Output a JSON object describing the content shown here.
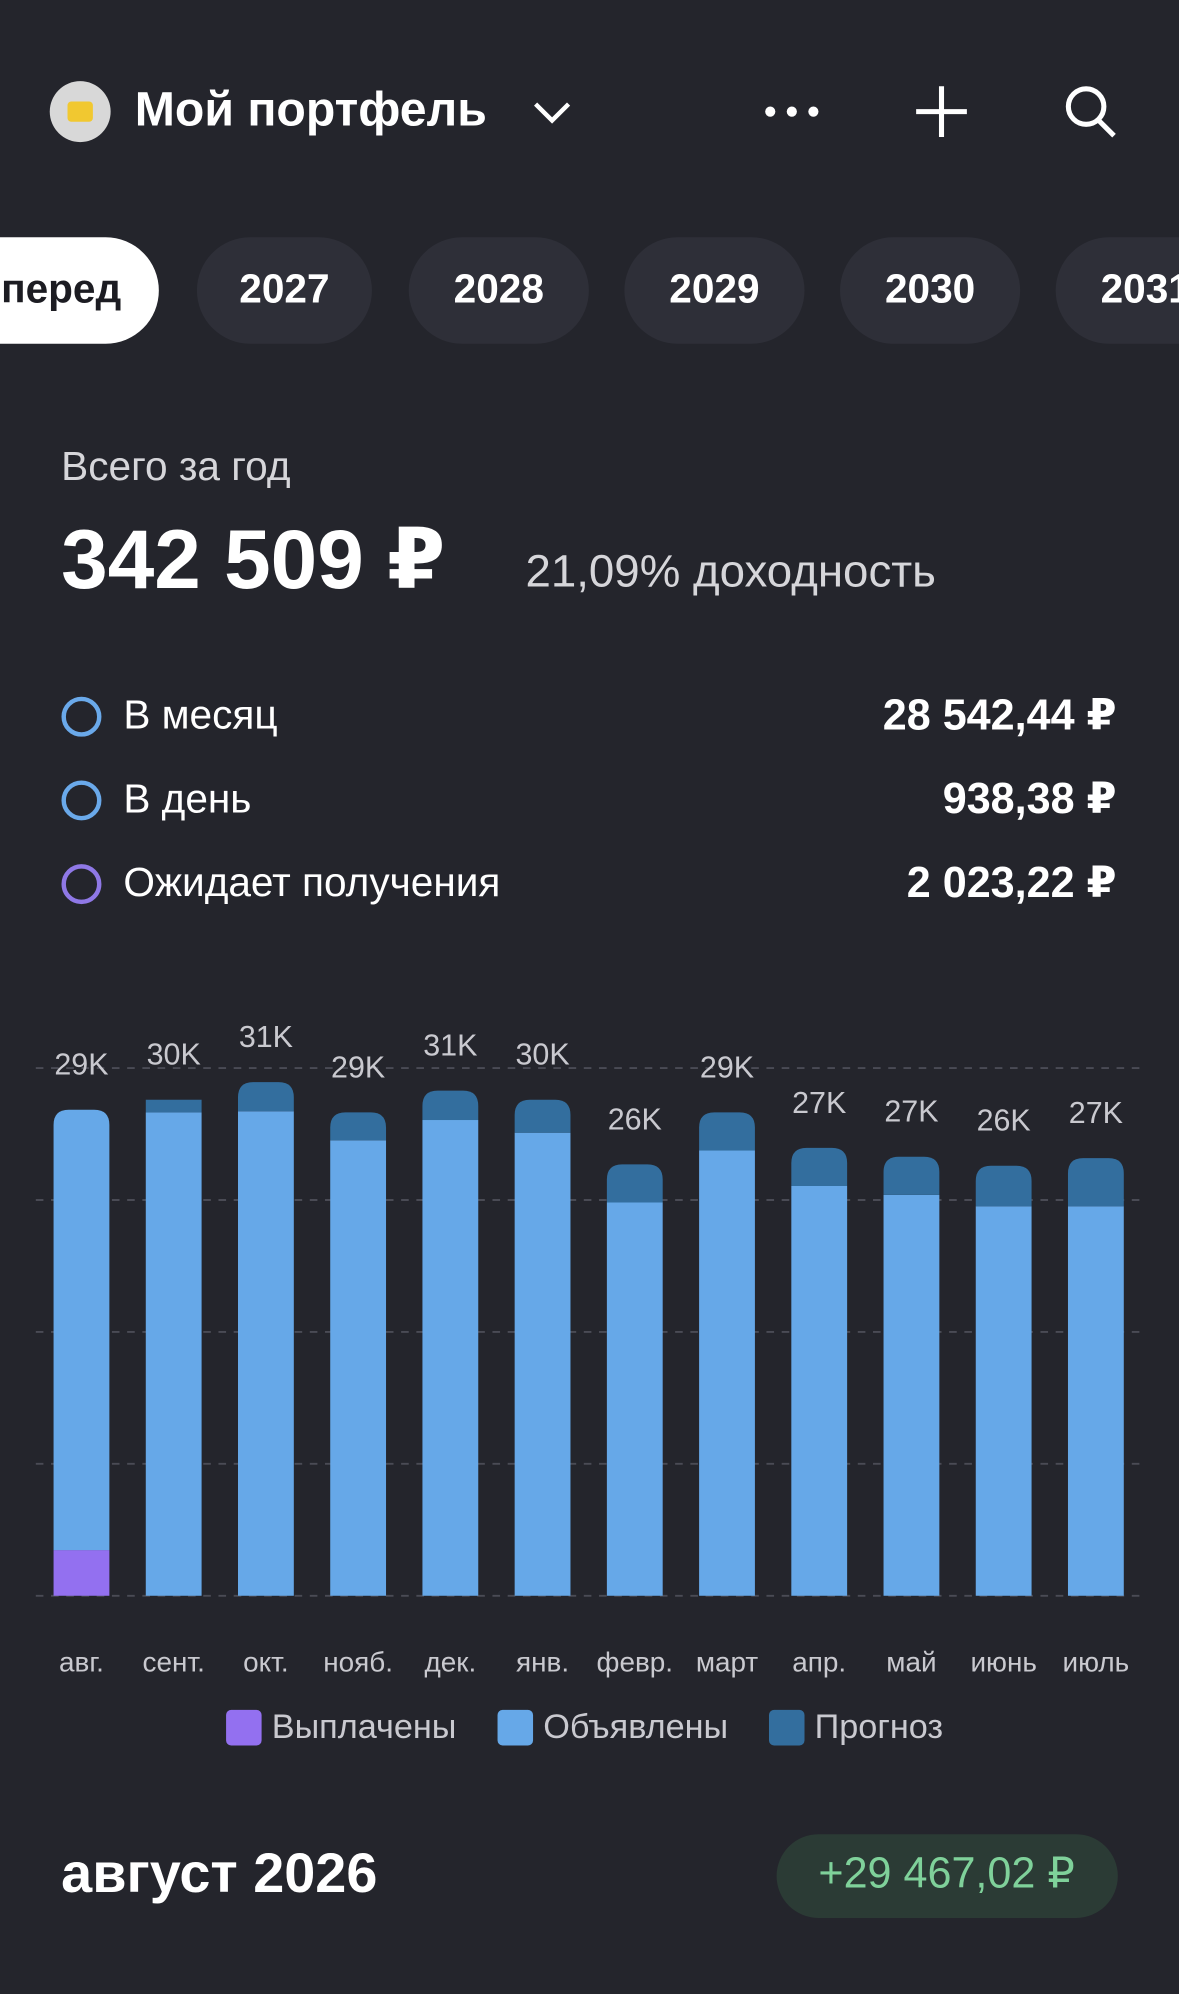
{
  "header": {
    "title": "Мой портфель"
  },
  "tabs": [
    "перед",
    "2027",
    "2028",
    "2029",
    "2030",
    "2031"
  ],
  "summary": {
    "label": "Всего за год",
    "total": "342 509 ₽",
    "yield": "21,09% доходность",
    "rows": [
      {
        "label": "В месяц",
        "value": "28 542,44 ₽"
      },
      {
        "label": "В день",
        "value": "938,38 ₽"
      },
      {
        "label": "Ожидает получения",
        "value": "2 023,22 ₽"
      }
    ]
  },
  "chart_data": {
    "type": "stacked_bar",
    "categories": [
      "авг.",
      "сент.",
      "окт.",
      "нояб.",
      "дек.",
      "янв.",
      "февр.",
      "март",
      "апр.",
      "май",
      "июнь",
      "июль"
    ],
    "series": [
      {
        "name": "Выплачены",
        "color": "#9370f0",
        "values": [
          2770,
          0,
          0,
          0,
          0,
          0,
          0,
          0,
          0,
          0,
          0,
          0
        ]
      },
      {
        "name": "Объявлены",
        "color": "#66a8e8",
        "values": [
          26700,
          29310,
          29380,
          27620,
          28850,
          28080,
          23850,
          27000,
          24850,
          24310,
          23620,
          23620
        ]
      },
      {
        "name": "Прогноз",
        "color": "#336e9e",
        "values": [
          0,
          770,
          1770,
          1690,
          1780,
          2000,
          2310,
          2310,
          2310,
          2310,
          2460,
          2920
        ]
      }
    ],
    "totals": [
      29470,
      30080,
      31150,
      29310,
      30630,
      30080,
      26160,
      29310,
      27160,
      26620,
      26080,
      26540
    ],
    "total_labels": [
      "29K",
      "30K",
      "31K",
      "29K",
      "31K",
      "30K",
      "26K",
      "29K",
      "27K",
      "27K",
      "26K",
      "27K"
    ],
    "ylim": [
      0,
      32000
    ],
    "yticks": [
      0,
      8000,
      16000,
      24000,
      32000
    ],
    "grid": true
  },
  "footer": {
    "month": "август 2026",
    "amount": "+29 467,02 ₽"
  }
}
